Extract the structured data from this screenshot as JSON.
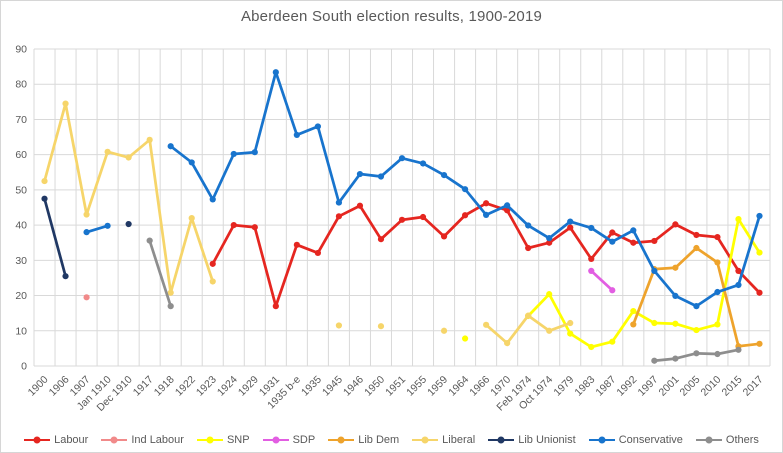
{
  "chart_data": {
    "type": "line",
    "title": "Aberdeen South election results, 1900-2019",
    "xlabel": "",
    "ylabel": "",
    "ylim": [
      0,
      90
    ],
    "ytick_step": 10,
    "grid": true,
    "legend_position": "bottom",
    "gridline_color": "#d9d9d9",
    "text_color": "#595959",
    "categories": [
      "1900",
      "1906",
      "1907",
      "Jan 1910",
      "Dec 1910",
      "1917",
      "1918",
      "1922",
      "1923",
      "1924",
      "1929",
      "1931",
      "1935 b-e",
      "1935",
      "1945",
      "1946",
      "1950",
      "1951",
      "1955",
      "1959",
      "1964",
      "1966",
      "1970",
      "Feb 1974",
      "Oct 1974",
      "1979",
      "1983",
      "1987",
      "1992",
      "1997",
      "2001",
      "2005",
      "2010",
      "2015",
      "2017"
    ],
    "series": [
      {
        "name": "Labour",
        "color": "#e52620",
        "values": [
          null,
          null,
          null,
          null,
          null,
          null,
          null,
          null,
          29,
          40,
          39.4,
          17,
          34.4,
          32.1,
          42.5,
          45.5,
          36,
          41.5,
          42.3,
          36.8,
          42.8,
          46.2,
          44.2,
          33.5,
          35,
          39.3,
          30.4,
          37.9,
          35,
          35.5,
          40.2,
          37.2,
          36.6,
          27,
          20.8
        ]
      },
      {
        "name": "Ind Labour",
        "color": "#f18a8a",
        "values": [
          null,
          null,
          19.5,
          null,
          null,
          null,
          null,
          null,
          null,
          null,
          null,
          null,
          null,
          null,
          null,
          null,
          null,
          null,
          null,
          null,
          null,
          null,
          null,
          null,
          null,
          null,
          null,
          null,
          null,
          null,
          null,
          null,
          null,
          null,
          null
        ]
      },
      {
        "name": "SNP",
        "color": "#ffff00",
        "values": [
          null,
          null,
          null,
          null,
          null,
          null,
          null,
          null,
          null,
          null,
          null,
          null,
          null,
          null,
          null,
          null,
          null,
          null,
          null,
          null,
          7.8,
          null,
          null,
          14.2,
          20.4,
          9.2,
          5.4,
          6.9,
          15.6,
          12.2,
          12,
          10.2,
          11.8,
          41.7,
          32.2
        ]
      },
      {
        "name": "SDP",
        "color": "#e25ee2",
        "values": [
          null,
          null,
          null,
          null,
          null,
          null,
          null,
          null,
          null,
          null,
          null,
          null,
          null,
          null,
          null,
          null,
          null,
          null,
          null,
          null,
          null,
          null,
          null,
          null,
          null,
          null,
          27,
          21.5,
          null,
          null,
          null,
          null,
          null,
          null,
          null
        ]
      },
      {
        "name": "Lib Dem",
        "color": "#eea32c",
        "values": [
          null,
          null,
          null,
          null,
          null,
          null,
          null,
          null,
          null,
          null,
          null,
          null,
          null,
          null,
          null,
          null,
          null,
          null,
          null,
          null,
          null,
          null,
          null,
          null,
          null,
          null,
          null,
          null,
          11.8,
          27.5,
          27.9,
          33.5,
          29.4,
          5.6,
          6.3
        ]
      },
      {
        "name": "Liberal",
        "color": "#f6d56a",
        "values": [
          52.5,
          74.5,
          43,
          60.8,
          59.2,
          64.2,
          20.8,
          42,
          24,
          null,
          null,
          null,
          null,
          null,
          11.5,
          null,
          11.3,
          null,
          null,
          10,
          null,
          11.7,
          6.5,
          14.3,
          10,
          12.2,
          null,
          null,
          null,
          null,
          null,
          null,
          null,
          null,
          null
        ]
      },
      {
        "name": "Lib Unionist",
        "color": "#203864",
        "values": [
          47.5,
          25.5,
          null,
          null,
          40.3,
          null,
          null,
          null,
          null,
          null,
          null,
          null,
          null,
          null,
          null,
          null,
          null,
          null,
          null,
          null,
          null,
          null,
          null,
          null,
          null,
          null,
          null,
          null,
          null,
          null,
          null,
          null,
          null,
          null,
          null
        ]
      },
      {
        "name": "Conservative",
        "color": "#1874cd",
        "values": [
          null,
          null,
          38,
          39.8,
          null,
          null,
          62.4,
          57.8,
          47.3,
          60.2,
          60.7,
          83.4,
          65.6,
          68,
          46.4,
          54.5,
          53.8,
          59,
          57.5,
          54.2,
          50.2,
          42.9,
          45.6,
          39.9,
          36.3,
          41,
          39.2,
          35.3,
          38.5,
          27,
          19.9,
          17,
          21,
          23,
          42.6
        ]
      },
      {
        "name": "Others",
        "color": "#8e8e8e",
        "values": [
          null,
          null,
          null,
          null,
          null,
          35.6,
          17,
          null,
          null,
          null,
          null,
          null,
          null,
          null,
          null,
          null,
          null,
          null,
          null,
          null,
          null,
          null,
          null,
          null,
          null,
          null,
          null,
          null,
          null,
          1.5,
          2.1,
          3.6,
          3.4,
          4.6,
          null
        ]
      }
    ]
  }
}
